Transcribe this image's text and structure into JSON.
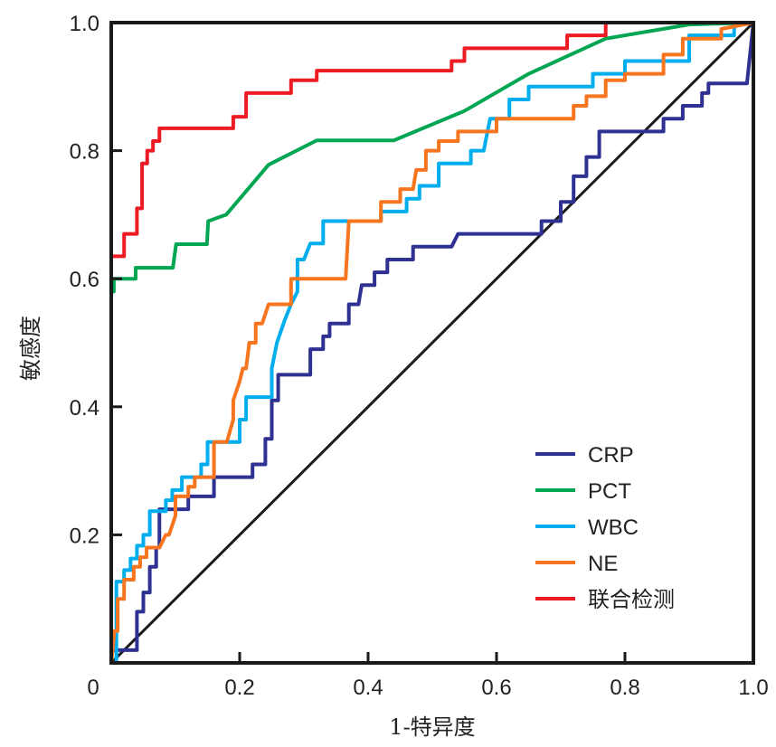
{
  "chart_data": {
    "type": "line",
    "title": "",
    "xlabel": "1-特异度",
    "ylabel": "敏感度",
    "xlim": [
      0,
      1
    ],
    "ylim": [
      0,
      1
    ],
    "x_ticks": [
      "0",
      "0.2",
      "0.4",
      "0.6",
      "0.8",
      "1.0"
    ],
    "y_ticks": [
      "0.2",
      "0.4",
      "0.6",
      "0.8",
      "1.0"
    ],
    "grid": false,
    "legend_position": "bottom-right",
    "reference_line": {
      "points": [
        [
          0,
          0
        ],
        [
          1,
          1
        ]
      ],
      "color": "#1a1a1a"
    },
    "series": [
      {
        "name": "CRP",
        "color": "#2e3192",
        "points": [
          [
            0,
            0
          ],
          [
            0,
            0.02
          ],
          [
            0.04,
            0.02
          ],
          [
            0.04,
            0.08
          ],
          [
            0.05,
            0.08
          ],
          [
            0.05,
            0.11
          ],
          [
            0.06,
            0.11
          ],
          [
            0.06,
            0.15
          ],
          [
            0.07,
            0.15
          ],
          [
            0.07,
            0.18
          ],
          [
            0.075,
            0.18
          ],
          [
            0.075,
            0.24
          ],
          [
            0.12,
            0.24
          ],
          [
            0.12,
            0.26
          ],
          [
            0.16,
            0.26
          ],
          [
            0.16,
            0.29
          ],
          [
            0.22,
            0.29
          ],
          [
            0.22,
            0.31
          ],
          [
            0.24,
            0.31
          ],
          [
            0.24,
            0.35
          ],
          [
            0.25,
            0.35
          ],
          [
            0.25,
            0.41
          ],
          [
            0.26,
            0.41
          ],
          [
            0.26,
            0.45
          ],
          [
            0.31,
            0.45
          ],
          [
            0.31,
            0.49
          ],
          [
            0.33,
            0.49
          ],
          [
            0.33,
            0.51
          ],
          [
            0.34,
            0.51
          ],
          [
            0.34,
            0.53
          ],
          [
            0.37,
            0.53
          ],
          [
            0.37,
            0.56
          ],
          [
            0.385,
            0.56
          ],
          [
            0.39,
            0.59
          ],
          [
            0.41,
            0.59
          ],
          [
            0.41,
            0.61
          ],
          [
            0.43,
            0.61
          ],
          [
            0.43,
            0.63
          ],
          [
            0.47,
            0.63
          ],
          [
            0.47,
            0.65
          ],
          [
            0.53,
            0.65
          ],
          [
            0.54,
            0.67
          ],
          [
            0.67,
            0.67
          ],
          [
            0.67,
            0.69
          ],
          [
            0.7,
            0.69
          ],
          [
            0.7,
            0.72
          ],
          [
            0.72,
            0.72
          ],
          [
            0.72,
            0.76
          ],
          [
            0.74,
            0.76
          ],
          [
            0.74,
            0.79
          ],
          [
            0.76,
            0.79
          ],
          [
            0.76,
            0.83
          ],
          [
            0.86,
            0.83
          ],
          [
            0.86,
            0.85
          ],
          [
            0.89,
            0.85
          ],
          [
            0.89,
            0.87
          ],
          [
            0.92,
            0.87
          ],
          [
            0.92,
            0.89
          ],
          [
            0.93,
            0.89
          ],
          [
            0.93,
            0.905
          ],
          [
            0.99,
            0.905
          ],
          [
            1,
            1
          ]
        ]
      },
      {
        "name": "PCT",
        "color": "#00a651",
        "points": [
          [
            0,
            0
          ],
          [
            0,
            0.58
          ],
          [
            0.004,
            0.58
          ],
          [
            0.004,
            0.6
          ],
          [
            0.038,
            0.6
          ],
          [
            0.038,
            0.617
          ],
          [
            0.096,
            0.617
          ],
          [
            0.101,
            0.654
          ],
          [
            0.149,
            0.654
          ],
          [
            0.151,
            0.69
          ],
          [
            0.179,
            0.7
          ],
          [
            0.245,
            0.778
          ],
          [
            0.32,
            0.816
          ],
          [
            0.44,
            0.816
          ],
          [
            0.55,
            0.862
          ],
          [
            0.65,
            0.92
          ],
          [
            0.77,
            0.975
          ],
          [
            0.9,
            0.997
          ],
          [
            1,
            1
          ]
        ]
      },
      {
        "name": "WBC",
        "color": "#00aeef",
        "points": [
          [
            0,
            0
          ],
          [
            0.008,
            0
          ],
          [
            0.008,
            0.127
          ],
          [
            0.02,
            0.127
          ],
          [
            0.02,
            0.145
          ],
          [
            0.03,
            0.145
          ],
          [
            0.03,
            0.163
          ],
          [
            0.04,
            0.163
          ],
          [
            0.04,
            0.183
          ],
          [
            0.05,
            0.183
          ],
          [
            0.05,
            0.2
          ],
          [
            0.06,
            0.2
          ],
          [
            0.06,
            0.237
          ],
          [
            0.085,
            0.237
          ],
          [
            0.085,
            0.254
          ],
          [
            0.095,
            0.254
          ],
          [
            0.095,
            0.27
          ],
          [
            0.11,
            0.27
          ],
          [
            0.11,
            0.29
          ],
          [
            0.14,
            0.29
          ],
          [
            0.14,
            0.31
          ],
          [
            0.15,
            0.31
          ],
          [
            0.15,
            0.345
          ],
          [
            0.2,
            0.345
          ],
          [
            0.2,
            0.38
          ],
          [
            0.21,
            0.38
          ],
          [
            0.21,
            0.415
          ],
          [
            0.25,
            0.415
          ],
          [
            0.25,
            0.46
          ],
          [
            0.258,
            0.5
          ],
          [
            0.27,
            0.535
          ],
          [
            0.28,
            0.56
          ],
          [
            0.29,
            0.58
          ],
          [
            0.29,
            0.63
          ],
          [
            0.3,
            0.63
          ],
          [
            0.31,
            0.655
          ],
          [
            0.33,
            0.655
          ],
          [
            0.33,
            0.69
          ],
          [
            0.42,
            0.69
          ],
          [
            0.42,
            0.705
          ],
          [
            0.46,
            0.705
          ],
          [
            0.46,
            0.725
          ],
          [
            0.48,
            0.725
          ],
          [
            0.48,
            0.745
          ],
          [
            0.51,
            0.745
          ],
          [
            0.51,
            0.78
          ],
          [
            0.56,
            0.78
          ],
          [
            0.56,
            0.8
          ],
          [
            0.58,
            0.8
          ],
          [
            0.59,
            0.85
          ],
          [
            0.62,
            0.85
          ],
          [
            0.62,
            0.88
          ],
          [
            0.65,
            0.88
          ],
          [
            0.65,
            0.9
          ],
          [
            0.75,
            0.9
          ],
          [
            0.75,
            0.92
          ],
          [
            0.8,
            0.92
          ],
          [
            0.8,
            0.94
          ],
          [
            0.9,
            0.94
          ],
          [
            0.9,
            0.98
          ],
          [
            0.97,
            0.98
          ],
          [
            0.97,
            0.995
          ],
          [
            1,
            1
          ]
        ]
      },
      {
        "name": "NE",
        "color": "#f7751e",
        "points": [
          [
            0,
            0
          ],
          [
            0.005,
            0.05
          ],
          [
            0.01,
            0.05
          ],
          [
            0.01,
            0.1
          ],
          [
            0.02,
            0.1
          ],
          [
            0.02,
            0.13
          ],
          [
            0.035,
            0.13
          ],
          [
            0.035,
            0.15
          ],
          [
            0.045,
            0.15
          ],
          [
            0.045,
            0.165
          ],
          [
            0.055,
            0.165
          ],
          [
            0.055,
            0.18
          ],
          [
            0.075,
            0.18
          ],
          [
            0.085,
            0.2
          ],
          [
            0.09,
            0.2
          ],
          [
            0.1,
            0.23
          ],
          [
            0.1,
            0.26
          ],
          [
            0.12,
            0.26
          ],
          [
            0.12,
            0.275
          ],
          [
            0.13,
            0.275
          ],
          [
            0.13,
            0.29
          ],
          [
            0.16,
            0.29
          ],
          [
            0.16,
            0.345
          ],
          [
            0.18,
            0.345
          ],
          [
            0.19,
            0.38
          ],
          [
            0.19,
            0.41
          ],
          [
            0.2,
            0.44
          ],
          [
            0.205,
            0.46
          ],
          [
            0.21,
            0.46
          ],
          [
            0.215,
            0.5
          ],
          [
            0.225,
            0.5
          ],
          [
            0.225,
            0.53
          ],
          [
            0.235,
            0.53
          ],
          [
            0.245,
            0.56
          ],
          [
            0.28,
            0.56
          ],
          [
            0.28,
            0.6
          ],
          [
            0.365,
            0.6
          ],
          [
            0.37,
            0.69
          ],
          [
            0.42,
            0.69
          ],
          [
            0.42,
            0.72
          ],
          [
            0.45,
            0.72
          ],
          [
            0.45,
            0.74
          ],
          [
            0.47,
            0.74
          ],
          [
            0.475,
            0.77
          ],
          [
            0.49,
            0.77
          ],
          [
            0.49,
            0.8
          ],
          [
            0.51,
            0.8
          ],
          [
            0.51,
            0.815
          ],
          [
            0.54,
            0.815
          ],
          [
            0.54,
            0.83
          ],
          [
            0.6,
            0.83
          ],
          [
            0.6,
            0.85
          ],
          [
            0.72,
            0.85
          ],
          [
            0.72,
            0.87
          ],
          [
            0.74,
            0.87
          ],
          [
            0.74,
            0.885
          ],
          [
            0.77,
            0.885
          ],
          [
            0.77,
            0.91
          ],
          [
            0.8,
            0.91
          ],
          [
            0.8,
            0.92
          ],
          [
            0.86,
            0.92
          ],
          [
            0.86,
            0.95
          ],
          [
            0.89,
            0.95
          ],
          [
            0.89,
            0.975
          ],
          [
            0.95,
            0.975
          ],
          [
            0.95,
            0.99
          ],
          [
            1,
            1
          ]
        ]
      },
      {
        "name": "联合检测",
        "color": "#ed1c24",
        "points": [
          [
            0,
            0
          ],
          [
            0,
            0.635
          ],
          [
            0.02,
            0.635
          ],
          [
            0.02,
            0.67
          ],
          [
            0.04,
            0.67
          ],
          [
            0.04,
            0.71
          ],
          [
            0.048,
            0.71
          ],
          [
            0.048,
            0.78
          ],
          [
            0.056,
            0.78
          ],
          [
            0.056,
            0.8
          ],
          [
            0.065,
            0.8
          ],
          [
            0.065,
            0.815
          ],
          [
            0.075,
            0.815
          ],
          [
            0.075,
            0.835
          ],
          [
            0.19,
            0.835
          ],
          [
            0.19,
            0.853
          ],
          [
            0.21,
            0.853
          ],
          [
            0.21,
            0.89
          ],
          [
            0.28,
            0.89
          ],
          [
            0.28,
            0.91
          ],
          [
            0.32,
            0.91
          ],
          [
            0.32,
            0.925
          ],
          [
            0.53,
            0.925
          ],
          [
            0.53,
            0.94
          ],
          [
            0.55,
            0.94
          ],
          [
            0.55,
            0.96
          ],
          [
            0.71,
            0.96
          ],
          [
            0.71,
            0.98
          ],
          [
            0.77,
            0.98
          ],
          [
            0.77,
            1.0
          ],
          [
            1,
            1
          ]
        ]
      }
    ]
  }
}
